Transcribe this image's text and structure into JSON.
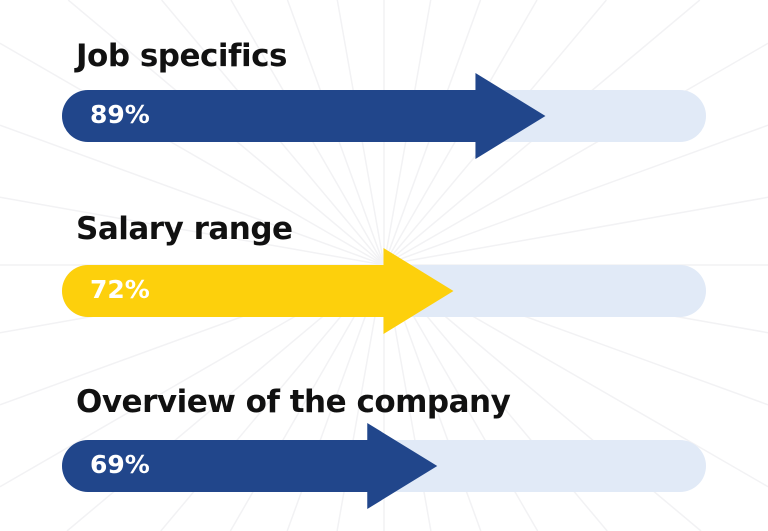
{
  "chart_data": {
    "type": "bar",
    "orientation": "horizontal",
    "categories": [
      "Job specifics",
      "Salary range",
      "Overview of the company"
    ],
    "values": [
      89,
      72,
      69
    ],
    "value_labels": [
      "89%",
      "72%",
      "69%"
    ],
    "xlim": [
      0,
      100
    ],
    "bar_colors": [
      "#21468b",
      "#fdd00c",
      "#21468b"
    ],
    "track_color": "#e1eaf7",
    "grid": false,
    "legend": "none"
  }
}
